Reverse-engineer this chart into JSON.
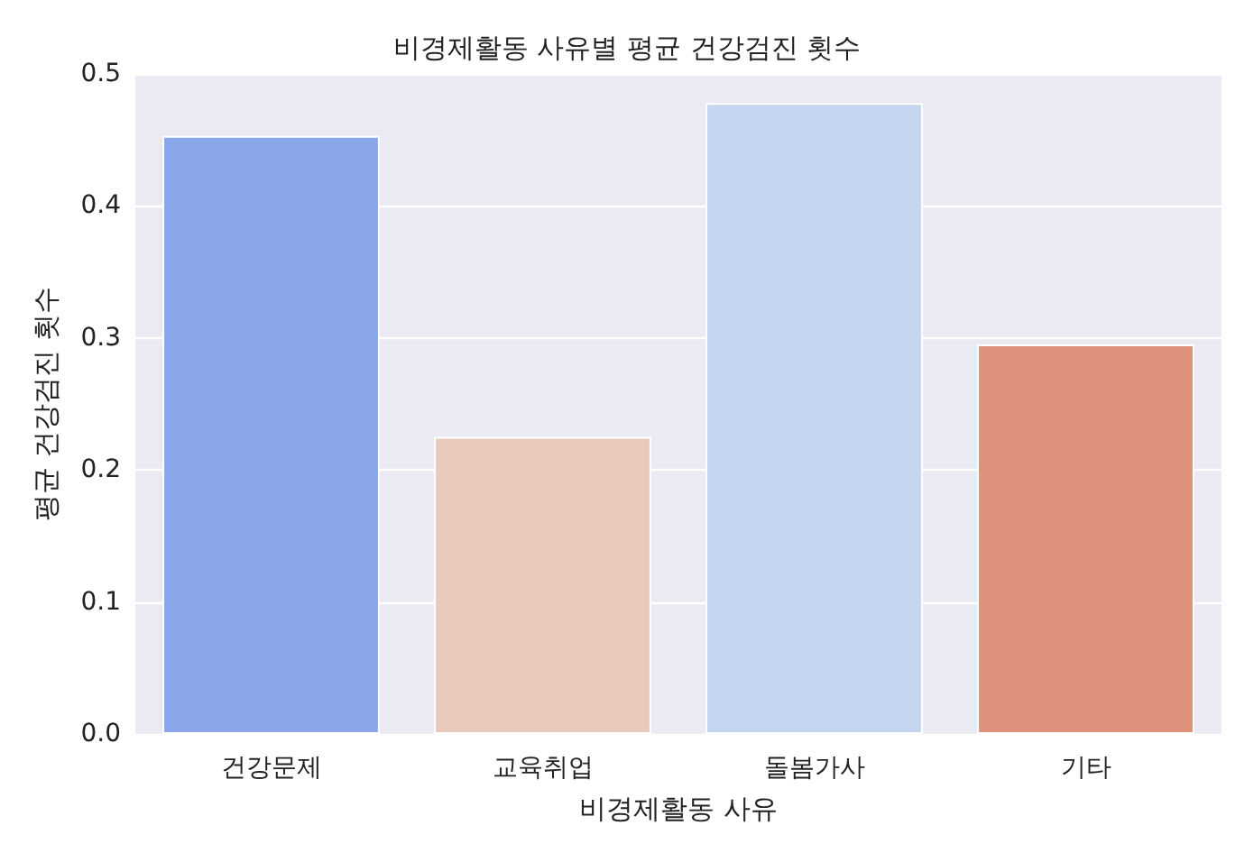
{
  "chart_data": {
    "type": "bar",
    "title": "비경제활동 사유별 평균 건강검진 횟수",
    "xlabel": "비경제활동 사유",
    "ylabel": "평균 건강검진 횟수",
    "categories": [
      "건강문제",
      "교육취업",
      "돌봄가사",
      "기타"
    ],
    "values": [
      0.453,
      0.225,
      0.478,
      0.295
    ],
    "colors": [
      "#8aa6ea",
      "#e8cbbc",
      "#c5d4ef",
      "#de917b"
    ],
    "ylim": [
      0,
      0.5
    ],
    "yticks": [
      {
        "value": 0,
        "label": "0.0"
      },
      {
        "value": 0.1,
        "label": "0.1"
      },
      {
        "value": 0.2,
        "label": "0.2"
      },
      {
        "value": 0.3,
        "label": "0.3"
      },
      {
        "value": 0.4,
        "label": "0.4"
      },
      {
        "value": 0.5,
        "label": "0.5"
      }
    ],
    "grid": "y"
  }
}
